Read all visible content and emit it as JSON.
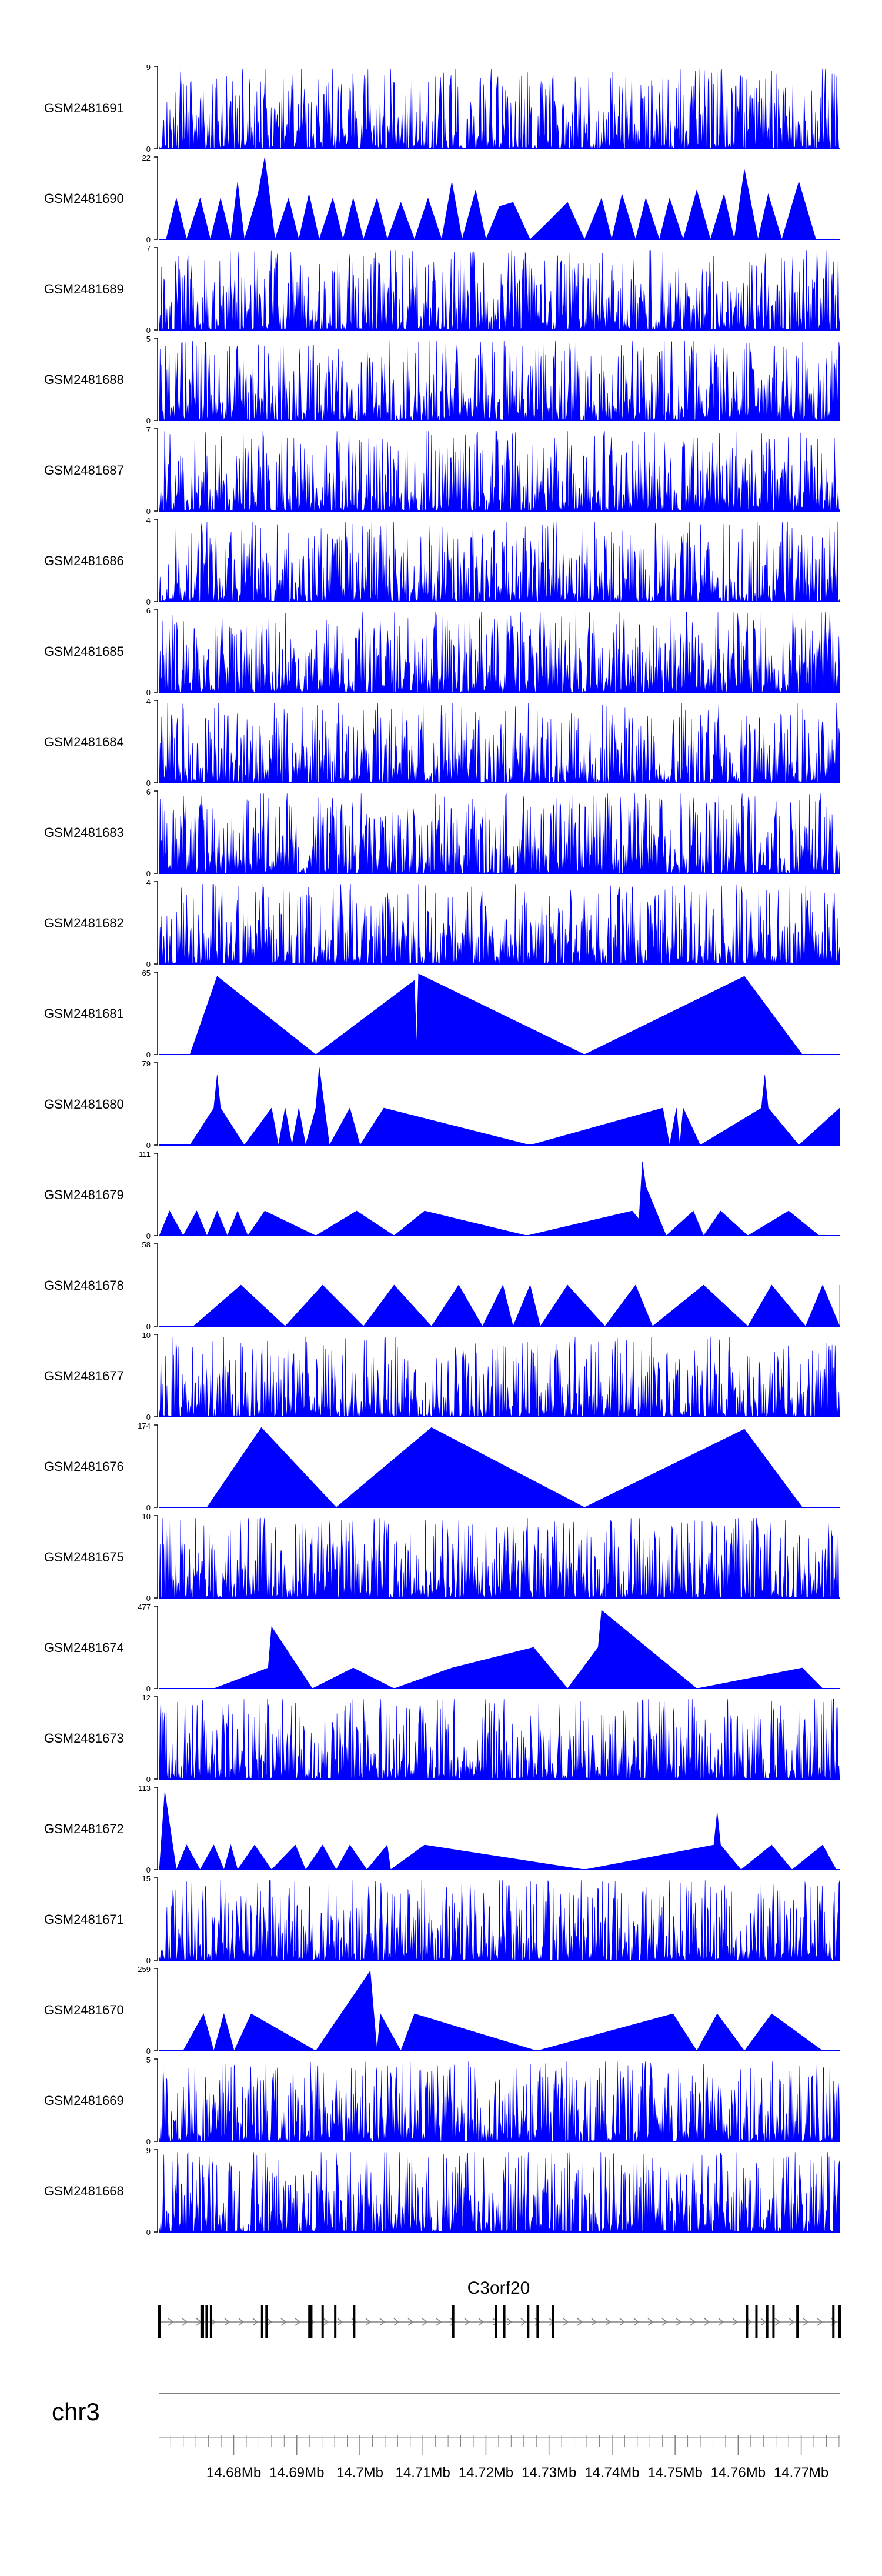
{
  "chart_data": {
    "type": "area",
    "title": "",
    "chromosome": "chr3",
    "gene": {
      "name": "C3orf20",
      "strand": "+",
      "exons_mb": [
        14.6682,
        14.6749,
        14.6751,
        14.6757,
        14.6764,
        14.6845,
        14.6852,
        14.692,
        14.6923,
        14.6941,
        14.6961,
        14.6991,
        14.7148,
        14.7216,
        14.7229,
        14.7267,
        14.7282,
        14.7306,
        14.7614,
        14.7629,
        14.7646,
        14.7656,
        14.7694,
        14.7751,
        14.7761
      ]
    },
    "x_axis": {
      "range": [
        14.6682,
        14.7761
      ],
      "tick_labels": [
        "14.68Mb",
        "14.69Mb",
        "14.7Mb",
        "14.71Mb",
        "14.72Mb",
        "14.73Mb",
        "14.74Mb",
        "14.75Mb",
        "14.76Mb",
        "14.77Mb"
      ],
      "tick_values": [
        14.68,
        14.69,
        14.7,
        14.71,
        14.72,
        14.73,
        14.74,
        14.75,
        14.76,
        14.77
      ]
    },
    "tracks": [
      {
        "name": "GSM2481691",
        "ymax": "9",
        "ymin": "0",
        "dense": true,
        "seed": 11,
        "ymaxNum": 9
      },
      {
        "name": "GSM2481690",
        "ymax": "22",
        "ymin": "0",
        "dense": false,
        "ymaxNum": 22,
        "points": [
          [
            0.01,
            0
          ],
          [
            0.025,
            0.5
          ],
          [
            0.04,
            0
          ],
          [
            0.06,
            0.5
          ],
          [
            0.075,
            0
          ],
          [
            0.09,
            0.5
          ],
          [
            0.105,
            0
          ],
          [
            0.115,
            0.7
          ],
          [
            0.125,
            0
          ],
          [
            0.145,
            0.55
          ],
          [
            0.155,
            1.0
          ],
          [
            0.17,
            0
          ],
          [
            0.19,
            0.5
          ],
          [
            0.205,
            0
          ],
          [
            0.22,
            0.55
          ],
          [
            0.235,
            0
          ],
          [
            0.255,
            0.5
          ],
          [
            0.27,
            0
          ],
          [
            0.285,
            0.5
          ],
          [
            0.3,
            0
          ],
          [
            0.32,
            0.5
          ],
          [
            0.335,
            0
          ],
          [
            0.355,
            0.45
          ],
          [
            0.375,
            0
          ],
          [
            0.395,
            0.5
          ],
          [
            0.415,
            0
          ],
          [
            0.43,
            0.7
          ],
          [
            0.445,
            0
          ],
          [
            0.465,
            0.6
          ],
          [
            0.48,
            0
          ],
          [
            0.5,
            0.4
          ],
          [
            0.52,
            0.45
          ],
          [
            0.545,
            0
          ],
          [
            0.57,
            0.2
          ],
          [
            0.6,
            0.45
          ],
          [
            0.625,
            0
          ],
          [
            0.65,
            0.5
          ],
          [
            0.665,
            0
          ],
          [
            0.68,
            0.55
          ],
          [
            0.7,
            0
          ],
          [
            0.715,
            0.5
          ],
          [
            0.735,
            0
          ],
          [
            0.75,
            0.5
          ],
          [
            0.77,
            0
          ],
          [
            0.79,
            0.6
          ],
          [
            0.81,
            0
          ],
          [
            0.83,
            0.55
          ],
          [
            0.845,
            0
          ],
          [
            0.86,
            0.85
          ],
          [
            0.88,
            0
          ],
          [
            0.895,
            0.55
          ],
          [
            0.915,
            0
          ],
          [
            0.94,
            0.7
          ],
          [
            0.965,
            0
          ]
        ]
      },
      {
        "name": "GSM2481689",
        "ymax": "7",
        "ymin": "0",
        "dense": true,
        "seed": 23,
        "ymaxNum": 7
      },
      {
        "name": "GSM2481688",
        "ymax": "5",
        "ymin": "0",
        "dense": true,
        "seed": 31,
        "ymaxNum": 5
      },
      {
        "name": "GSM2481687",
        "ymax": "7",
        "ymin": "0",
        "dense": true,
        "seed": 47,
        "ymaxNum": 7
      },
      {
        "name": "GSM2481686",
        "ymax": "4",
        "ymin": "0",
        "dense": true,
        "seed": 53,
        "ymaxNum": 4
      },
      {
        "name": "GSM2481685",
        "ymax": "6",
        "ymin": "0",
        "dense": true,
        "seed": 61,
        "ymaxNum": 6
      },
      {
        "name": "GSM2481684",
        "ymax": "4",
        "ymin": "0",
        "dense": true,
        "seed": 73,
        "ymaxNum": 4
      },
      {
        "name": "GSM2481683",
        "ymax": "6",
        "ymin": "0",
        "dense": true,
        "seed": 89,
        "ymaxNum": 6
      },
      {
        "name": "GSM2481682",
        "ymax": "4",
        "ymin": "0",
        "dense": true,
        "seed": 97,
        "ymaxNum": 4
      },
      {
        "name": "GSM2481681",
        "ymax": "65",
        "ymin": "0",
        "dense": false,
        "ymaxNum": 65,
        "points": [
          [
            0.045,
            0
          ],
          [
            0.085,
            0.95
          ],
          [
            0.23,
            0
          ],
          [
            0.375,
            0.9
          ],
          [
            0.378,
            0.1
          ],
          [
            0.381,
            0.98
          ],
          [
            0.625,
            0
          ],
          [
            0.86,
            0.95
          ],
          [
            0.945,
            0
          ]
        ]
      },
      {
        "name": "GSM2481680",
        "ymax": "79",
        "ymin": "0",
        "dense": false,
        "ymaxNum": 79,
        "points": [
          [
            0.045,
            0
          ],
          [
            0.08,
            0.45
          ],
          [
            0.085,
            0.85
          ],
          [
            0.09,
            0.45
          ],
          [
            0.125,
            0
          ],
          [
            0.165,
            0.45
          ],
          [
            0.175,
            0
          ],
          [
            0.185,
            0.45
          ],
          [
            0.195,
            0
          ],
          [
            0.205,
            0.45
          ],
          [
            0.215,
            0
          ],
          [
            0.23,
            0.45
          ],
          [
            0.235,
            0.95
          ],
          [
            0.25,
            0
          ],
          [
            0.28,
            0.45
          ],
          [
            0.295,
            0
          ],
          [
            0.33,
            0.45
          ],
          [
            0.545,
            0
          ],
          [
            0.74,
            0.45
          ],
          [
            0.75,
            0
          ],
          [
            0.76,
            0.45
          ],
          [
            0.765,
            0
          ],
          [
            0.77,
            0.45
          ],
          [
            0.795,
            0
          ],
          [
            0.885,
            0.45
          ],
          [
            0.89,
            0.85
          ],
          [
            0.895,
            0.45
          ],
          [
            0.94,
            0
          ],
          [
            1.0,
            0.45
          ],
          [
            1.0,
            0
          ]
        ]
      },
      {
        "name": "GSM2481679",
        "ymax": "111",
        "ymin": "0",
        "dense": false,
        "ymaxNum": 111,
        "points": [
          [
            0.0,
            0
          ],
          [
            0.015,
            0.3
          ],
          [
            0.035,
            0
          ],
          [
            0.055,
            0.3
          ],
          [
            0.07,
            0
          ],
          [
            0.085,
            0.3
          ],
          [
            0.1,
            0
          ],
          [
            0.115,
            0.3
          ],
          [
            0.13,
            0
          ],
          [
            0.155,
            0.3
          ],
          [
            0.23,
            0
          ],
          [
            0.29,
            0.3
          ],
          [
            0.345,
            0
          ],
          [
            0.39,
            0.3
          ],
          [
            0.54,
            0
          ],
          [
            0.695,
            0.3
          ],
          [
            0.705,
            0.2
          ],
          [
            0.71,
            0.9
          ],
          [
            0.715,
            0.6
          ],
          [
            0.745,
            0
          ],
          [
            0.785,
            0.3
          ],
          [
            0.8,
            0
          ],
          [
            0.825,
            0.3
          ],
          [
            0.865,
            0
          ],
          [
            0.925,
            0.3
          ],
          [
            0.97,
            0
          ]
        ]
      },
      {
        "name": "GSM2481678",
        "ymax": "58",
        "ymin": "0",
        "dense": false,
        "ymaxNum": 58,
        "points": [
          [
            0.05,
            0
          ],
          [
            0.12,
            0.5
          ],
          [
            0.185,
            0
          ],
          [
            0.24,
            0.5
          ],
          [
            0.3,
            0
          ],
          [
            0.345,
            0.5
          ],
          [
            0.4,
            0
          ],
          [
            0.44,
            0.5
          ],
          [
            0.475,
            0
          ],
          [
            0.505,
            0.5
          ],
          [
            0.52,
            0
          ],
          [
            0.545,
            0.5
          ],
          [
            0.56,
            0
          ],
          [
            0.6,
            0.5
          ],
          [
            0.655,
            0
          ],
          [
            0.7,
            0.5
          ],
          [
            0.725,
            0
          ],
          [
            0.8,
            0.5
          ],
          [
            0.865,
            0
          ],
          [
            0.9,
            0.5
          ],
          [
            0.95,
            0
          ],
          [
            0.975,
            0.5
          ],
          [
            1.0,
            0
          ],
          [
            1.0,
            0.5
          ],
          [
            1.02,
            0
          ]
        ]
      },
      {
        "name": "GSM2481677",
        "ymax": "10",
        "ymin": "0",
        "dense": true,
        "seed": 101,
        "ymaxNum": 10
      },
      {
        "name": "GSM2481676",
        "ymax": "174",
        "ymin": "0",
        "dense": false,
        "ymaxNum": 174,
        "points": [
          [
            0.07,
            0
          ],
          [
            0.15,
            0.97
          ],
          [
            0.26,
            0
          ],
          [
            0.4,
            0.97
          ],
          [
            0.625,
            0
          ],
          [
            0.86,
            0.95
          ],
          [
            0.945,
            0
          ]
        ]
      },
      {
        "name": "GSM2481675",
        "ymax": "10",
        "ymin": "0",
        "dense": true,
        "seed": 113,
        "ymaxNum": 10
      },
      {
        "name": "GSM2481674",
        "ymax": "477",
        "ymin": "0",
        "dense": false,
        "ymaxNum": 477,
        "points": [
          [
            0.08,
            0
          ],
          [
            0.16,
            0.25
          ],
          [
            0.165,
            0.75
          ],
          [
            0.225,
            0
          ],
          [
            0.285,
            0.25
          ],
          [
            0.345,
            0
          ],
          [
            0.43,
            0.25
          ],
          [
            0.55,
            0.5
          ],
          [
            0.6,
            0
          ],
          [
            0.645,
            0.5
          ],
          [
            0.65,
            0.95
          ],
          [
            0.79,
            0
          ],
          [
            0.945,
            0.25
          ],
          [
            0.975,
            0
          ]
        ]
      },
      {
        "name": "GSM2481673",
        "ymax": "12",
        "ymin": "0",
        "dense": true,
        "seed": 127,
        "ymaxNum": 12
      },
      {
        "name": "GSM2481672",
        "ymax": "113",
        "ymin": "0",
        "dense": false,
        "ymaxNum": 113,
        "points": [
          [
            0.0,
            0
          ],
          [
            0.008,
            0.95
          ],
          [
            0.025,
            0
          ],
          [
            0.04,
            0.3
          ],
          [
            0.06,
            0
          ],
          [
            0.08,
            0.3
          ],
          [
            0.095,
            0
          ],
          [
            0.105,
            0.3
          ],
          [
            0.115,
            0
          ],
          [
            0.14,
            0.3
          ],
          [
            0.165,
            0
          ],
          [
            0.2,
            0.3
          ],
          [
            0.215,
            0
          ],
          [
            0.24,
            0.3
          ],
          [
            0.26,
            0
          ],
          [
            0.28,
            0.3
          ],
          [
            0.305,
            0
          ],
          [
            0.335,
            0.3
          ],
          [
            0.34,
            0
          ],
          [
            0.39,
            0.3
          ],
          [
            0.625,
            0
          ],
          [
            0.815,
            0.3
          ],
          [
            0.82,
            0.7
          ],
          [
            0.825,
            0.3
          ],
          [
            0.855,
            0
          ],
          [
            0.9,
            0.3
          ],
          [
            0.93,
            0
          ],
          [
            0.975,
            0.3
          ],
          [
            0.995,
            0
          ]
        ]
      },
      {
        "name": "GSM2481671",
        "ymax": "15",
        "ymin": "0",
        "dense": true,
        "seed": 137,
        "ymaxNum": 15
      },
      {
        "name": "GSM2481670",
        "ymax": "259",
        "ymin": "0",
        "dense": false,
        "ymaxNum": 259,
        "points": [
          [
            0.035,
            0
          ],
          [
            0.065,
            0.45
          ],
          [
            0.08,
            0
          ],
          [
            0.095,
            0.45
          ],
          [
            0.11,
            0
          ],
          [
            0.135,
            0.45
          ],
          [
            0.23,
            0
          ],
          [
            0.31,
            0.97
          ],
          [
            0.32,
            0
          ],
          [
            0.325,
            0.45
          ],
          [
            0.355,
            0
          ],
          [
            0.375,
            0.45
          ],
          [
            0.555,
            0
          ],
          [
            0.755,
            0.45
          ],
          [
            0.79,
            0
          ],
          [
            0.82,
            0.45
          ],
          [
            0.86,
            0
          ],
          [
            0.9,
            0.45
          ],
          [
            0.975,
            0
          ]
        ]
      },
      {
        "name": "GSM2481669",
        "ymax": "5",
        "ymin": "0",
        "dense": true,
        "seed": 149,
        "ymaxNum": 5
      },
      {
        "name": "GSM2481668",
        "ymax": "9",
        "ymin": "0",
        "dense": true,
        "seed": 157,
        "ymaxNum": 9
      }
    ]
  },
  "colors": {
    "signal": "#0000ff",
    "axis": "#000000",
    "gene": "#000000",
    "intron": "#808080",
    "label": "#000000",
    "tick": "#808080"
  }
}
